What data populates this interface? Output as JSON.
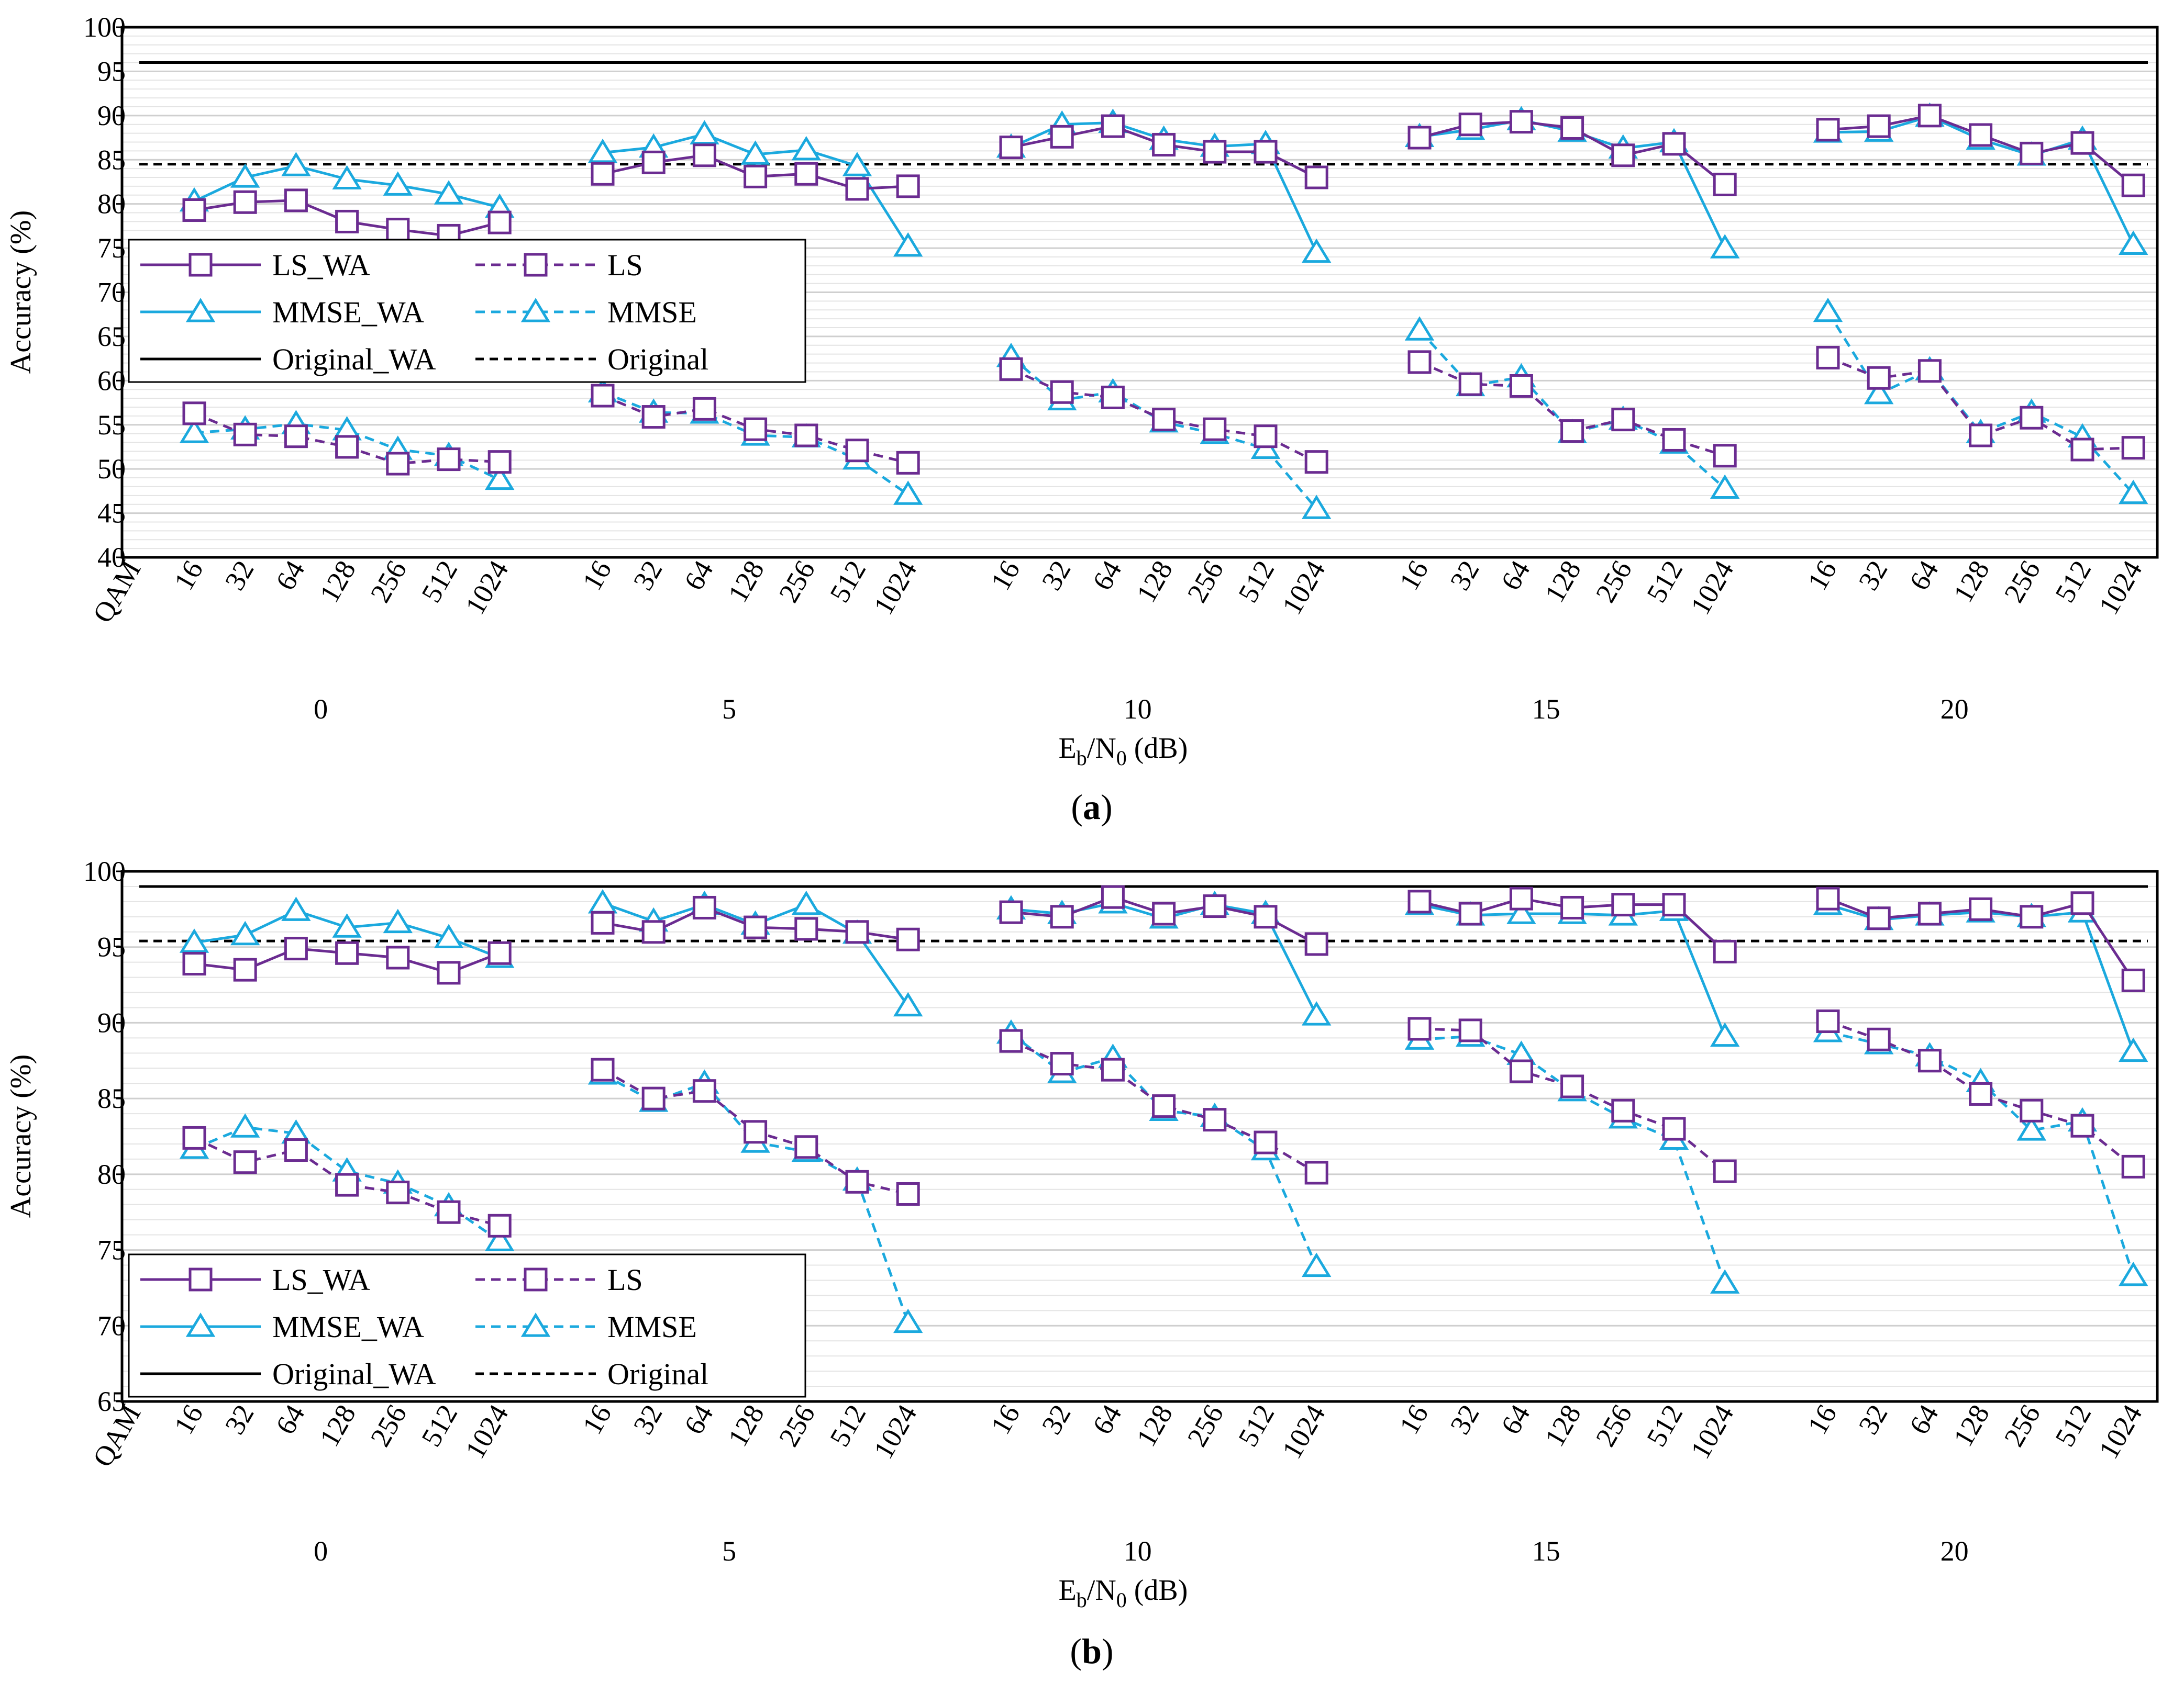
{
  "figure": {
    "colors": {
      "ls": "#6B2C91",
      "mmse": "#1BA9DE",
      "original": "#000000",
      "grid": "#d9d9d9",
      "axis": "#000000"
    },
    "snr_values": [
      "0",
      "5",
      "10",
      "15",
      "20"
    ],
    "qam_label": "QAM",
    "qam_orders": [
      "16",
      "32",
      "64",
      "128",
      "256",
      "512",
      "1024"
    ],
    "xlabel_main": "E",
    "xlabel_sub1": "b",
    "xlabel_mid": "/N",
    "xlabel_sub2": "0",
    "xlabel_tail": " (dB)",
    "ylabel": "Accuracy (%)",
    "legend": {
      "ls_wa": "LS_WA",
      "ls": "LS",
      "mmse_wa": "MMSE_WA",
      "mmse": "MMSE",
      "orig_wa": "Original_WA",
      "orig": "Original"
    }
  },
  "chart_data": [
    {
      "type": "line",
      "panel": "a",
      "caption_letter": "a",
      "ylim": [
        40,
        100
      ],
      "yticks": [
        40,
        45,
        50,
        55,
        60,
        65,
        70,
        75,
        80,
        85,
        90,
        95,
        100
      ],
      "minor_grid_step": 1,
      "legend_position": "left",
      "original_wa": 96,
      "original": 84.5,
      "series": {
        "LS_WA": [
          [
            79.3,
            80.2,
            80.4,
            78.0,
            77.1,
            76.4,
            77.9
          ],
          [
            83.4,
            84.7,
            85.5,
            83.1,
            83.4,
            81.7,
            82.0
          ],
          [
            86.4,
            87.6,
            88.8,
            86.7,
            85.9,
            85.9,
            83.0
          ],
          [
            87.5,
            89.0,
            89.3,
            88.6,
            85.5,
            86.8,
            82.2
          ],
          [
            88.4,
            88.8,
            90.0,
            87.8,
            85.7,
            86.9,
            82.1
          ]
        ],
        "MMSE_WA": [
          [
            80.3,
            83.0,
            84.3,
            82.8,
            82.1,
            81.1,
            79.6
          ],
          [
            85.8,
            86.4,
            87.9,
            85.6,
            86.1,
            84.3,
            75.2
          ],
          [
            86.4,
            89.0,
            89.2,
            87.3,
            86.5,
            86.8,
            74.5
          ],
          [
            87.6,
            88.4,
            89.5,
            88.2,
            86.3,
            87.0,
            75.0
          ],
          [
            88.1,
            88.2,
            89.9,
            87.3,
            85.5,
            87.3,
            75.4
          ]
        ],
        "LS": [
          [
            56.3,
            53.9,
            53.7,
            52.5,
            50.6,
            51.1,
            50.8
          ],
          [
            58.3,
            55.9,
            56.8,
            54.5,
            53.8,
            52.1,
            50.7
          ],
          [
            61.3,
            58.7,
            58.1,
            55.6,
            54.5,
            53.7,
            50.8
          ],
          [
            62.1,
            59.6,
            59.4,
            54.3,
            55.6,
            53.3,
            51.5
          ],
          [
            62.6,
            60.3,
            61.1,
            53.8,
            55.8,
            52.2,
            52.4
          ]
        ],
        "MMSE": [
          [
            54.1,
            54.5,
            55.1,
            54.4,
            52.2,
            51.5,
            48.8
          ],
          [
            58.7,
            56.4,
            56.3,
            53.8,
            53.6,
            51.1,
            47.1
          ],
          [
            62.7,
            57.8,
            58.7,
            55.3,
            54.0,
            52.3,
            45.5
          ],
          [
            65.7,
            59.4,
            60.4,
            54.1,
            55.6,
            52.9,
            47.8
          ],
          [
            67.8,
            58.5,
            61.2,
            54.1,
            56.4,
            53.6,
            47.2
          ]
        ]
      }
    },
    {
      "type": "line",
      "panel": "b",
      "caption_letter": "b",
      "ylim": [
        65,
        100
      ],
      "yticks": [
        65,
        70,
        75,
        80,
        85,
        90,
        95,
        100
      ],
      "minor_grid_step": 1,
      "legend_position": "left",
      "original_wa": 99,
      "original": 95.4,
      "series": {
        "LS_WA": [
          [
            93.9,
            93.5,
            94.9,
            94.6,
            94.3,
            93.3,
            94.6
          ],
          [
            96.6,
            96.0,
            97.6,
            96.3,
            96.2,
            96.0,
            95.5
          ],
          [
            97.3,
            97.0,
            98.3,
            97.2,
            97.7,
            97.0,
            95.2
          ],
          [
            98.0,
            97.2,
            98.2,
            97.6,
            97.8,
            97.8,
            94.7
          ],
          [
            98.2,
            96.9,
            97.2,
            97.5,
            97.0,
            97.9,
            92.8
          ]
        ],
        "MMSE_WA": [
          [
            95.3,
            95.8,
            97.4,
            96.3,
            96.6,
            95.6,
            94.3
          ],
          [
            97.9,
            96.7,
            97.8,
            96.5,
            97.8,
            95.9,
            91.1
          ],
          [
            97.5,
            97.2,
            97.9,
            96.9,
            97.8,
            97.2,
            90.5
          ],
          [
            97.8,
            97.1,
            97.2,
            97.2,
            97.1,
            97.4,
            89.1
          ],
          [
            97.8,
            96.8,
            97.1,
            97.3,
            97.0,
            97.3,
            88.1
          ]
        ],
        "LS": [
          [
            82.4,
            80.8,
            81.6,
            79.3,
            78.8,
            77.5,
            76.6
          ],
          [
            86.9,
            85.0,
            85.5,
            82.8,
            81.8,
            79.5,
            78.7
          ],
          [
            88.8,
            87.3,
            86.9,
            84.5,
            83.6,
            82.1,
            80.1
          ],
          [
            89.6,
            89.5,
            86.8,
            85.8,
            84.2,
            83.0,
            80.2
          ],
          [
            90.1,
            88.9,
            87.5,
            85.3,
            84.2,
            83.2,
            80.5
          ]
        ],
        "MMSE": [
          [
            81.7,
            83.1,
            82.7,
            80.2,
            79.4,
            77.9,
            75.6
          ],
          [
            86.6,
            84.8,
            86.0,
            82.1,
            81.5,
            79.6,
            70.2
          ],
          [
            89.3,
            86.7,
            87.7,
            84.2,
            83.8,
            81.6,
            73.9
          ],
          [
            88.9,
            89.1,
            87.9,
            85.5,
            83.7,
            82.3,
            72.8
          ],
          [
            89.4,
            88.6,
            87.8,
            86.1,
            82.9,
            83.5,
            73.3
          ]
        ]
      }
    }
  ]
}
